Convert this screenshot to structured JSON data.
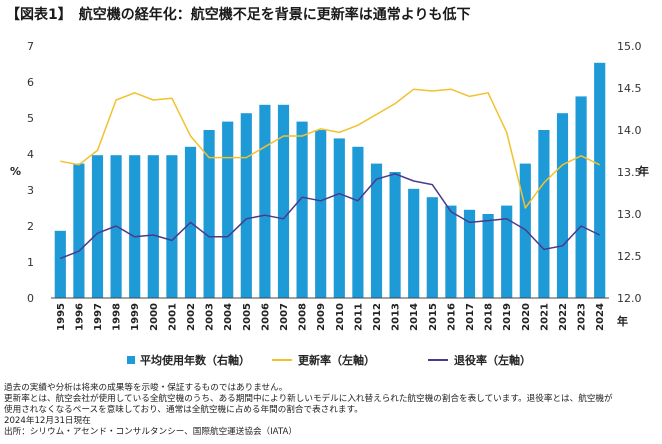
{
  "title": "【図表1】　航空機の経年化：航空機不足を背景に更新率は通常よりも低下",
  "chart_data": {
    "type": "bar+line",
    "categories": [
      "1995",
      "1996",
      "1997",
      "1998",
      "1999",
      "2000",
      "2001",
      "2002",
      "2003",
      "2004",
      "2005",
      "2006",
      "2007",
      "2008",
      "2009",
      "2010",
      "2011",
      "2012",
      "2013",
      "2014",
      "2015",
      "2016",
      "2017",
      "2018",
      "2019",
      "2020",
      "2021",
      "2022",
      "2023",
      "2024"
    ],
    "series": [
      {
        "name": "平均使用年数（右軸）",
        "type": "bar",
        "axis": "right",
        "color": "#1e9bd7",
        "values": [
          12.8,
          13.6,
          13.7,
          13.7,
          13.7,
          13.7,
          13.7,
          13.8,
          14.0,
          14.1,
          14.2,
          14.3,
          14.3,
          14.1,
          14.0,
          13.9,
          13.8,
          13.6,
          13.5,
          13.3,
          13.2,
          13.1,
          13.05,
          13.0,
          13.1,
          13.6,
          14.0,
          14.2,
          14.4,
          14.8
        ]
      },
      {
        "name": "更新率（左軸）",
        "type": "line",
        "axis": "left",
        "color": "#f2c12e",
        "values": [
          3.8,
          3.7,
          4.1,
          5.5,
          5.7,
          5.5,
          5.55,
          4.5,
          3.9,
          3.9,
          3.9,
          4.2,
          4.5,
          4.5,
          4.7,
          4.6,
          4.8,
          5.1,
          5.4,
          5.8,
          5.75,
          5.8,
          5.6,
          5.7,
          4.6,
          2.5,
          3.2,
          3.7,
          3.95,
          3.7
        ]
      },
      {
        "name": "退役率（左軸）",
        "type": "line",
        "axis": "left",
        "color": "#4b3a8c",
        "values": [
          1.1,
          1.3,
          1.8,
          2.0,
          1.7,
          1.75,
          1.6,
          2.1,
          1.7,
          1.7,
          2.2,
          2.3,
          2.2,
          2.8,
          2.7,
          2.9,
          2.7,
          3.3,
          3.45,
          3.25,
          3.15,
          2.4,
          2.1,
          2.15,
          2.2,
          1.9,
          1.35,
          1.45,
          2.0,
          1.75
        ]
      }
    ],
    "left_axis": {
      "label": "%",
      "min": 0,
      "max": 7,
      "ticks": [
        "0",
        "1",
        "2",
        "3",
        "4",
        "5",
        "6",
        "7"
      ]
    },
    "right_axis": {
      "label": "年",
      "min": 12.0,
      "max": 15.0,
      "ticks": [
        "12.0",
        "12.5",
        "13.0",
        "13.5",
        "14.0",
        "14.5",
        "15.0"
      ]
    },
    "x_unit": "年",
    "grid": false,
    "legend_position": "bottom"
  },
  "notes": [
    "過去の実績や分析は将来の成果等を示唆・保証するものではありません。",
    "更新率とは、航空会社が使用している全航空機のうち、ある期間中により新しいモデルに入れ替えられた航空機の割合を表しています。退役率とは、航空機が",
    "使用されなくなるペースを意味しており、通常は全航空機に占める年間の割合で表されます。",
    "2024年12月31日現在",
    "出所：シリウム・アセンド・コンサルタンシー、国際航空運送協会（IATA）"
  ]
}
